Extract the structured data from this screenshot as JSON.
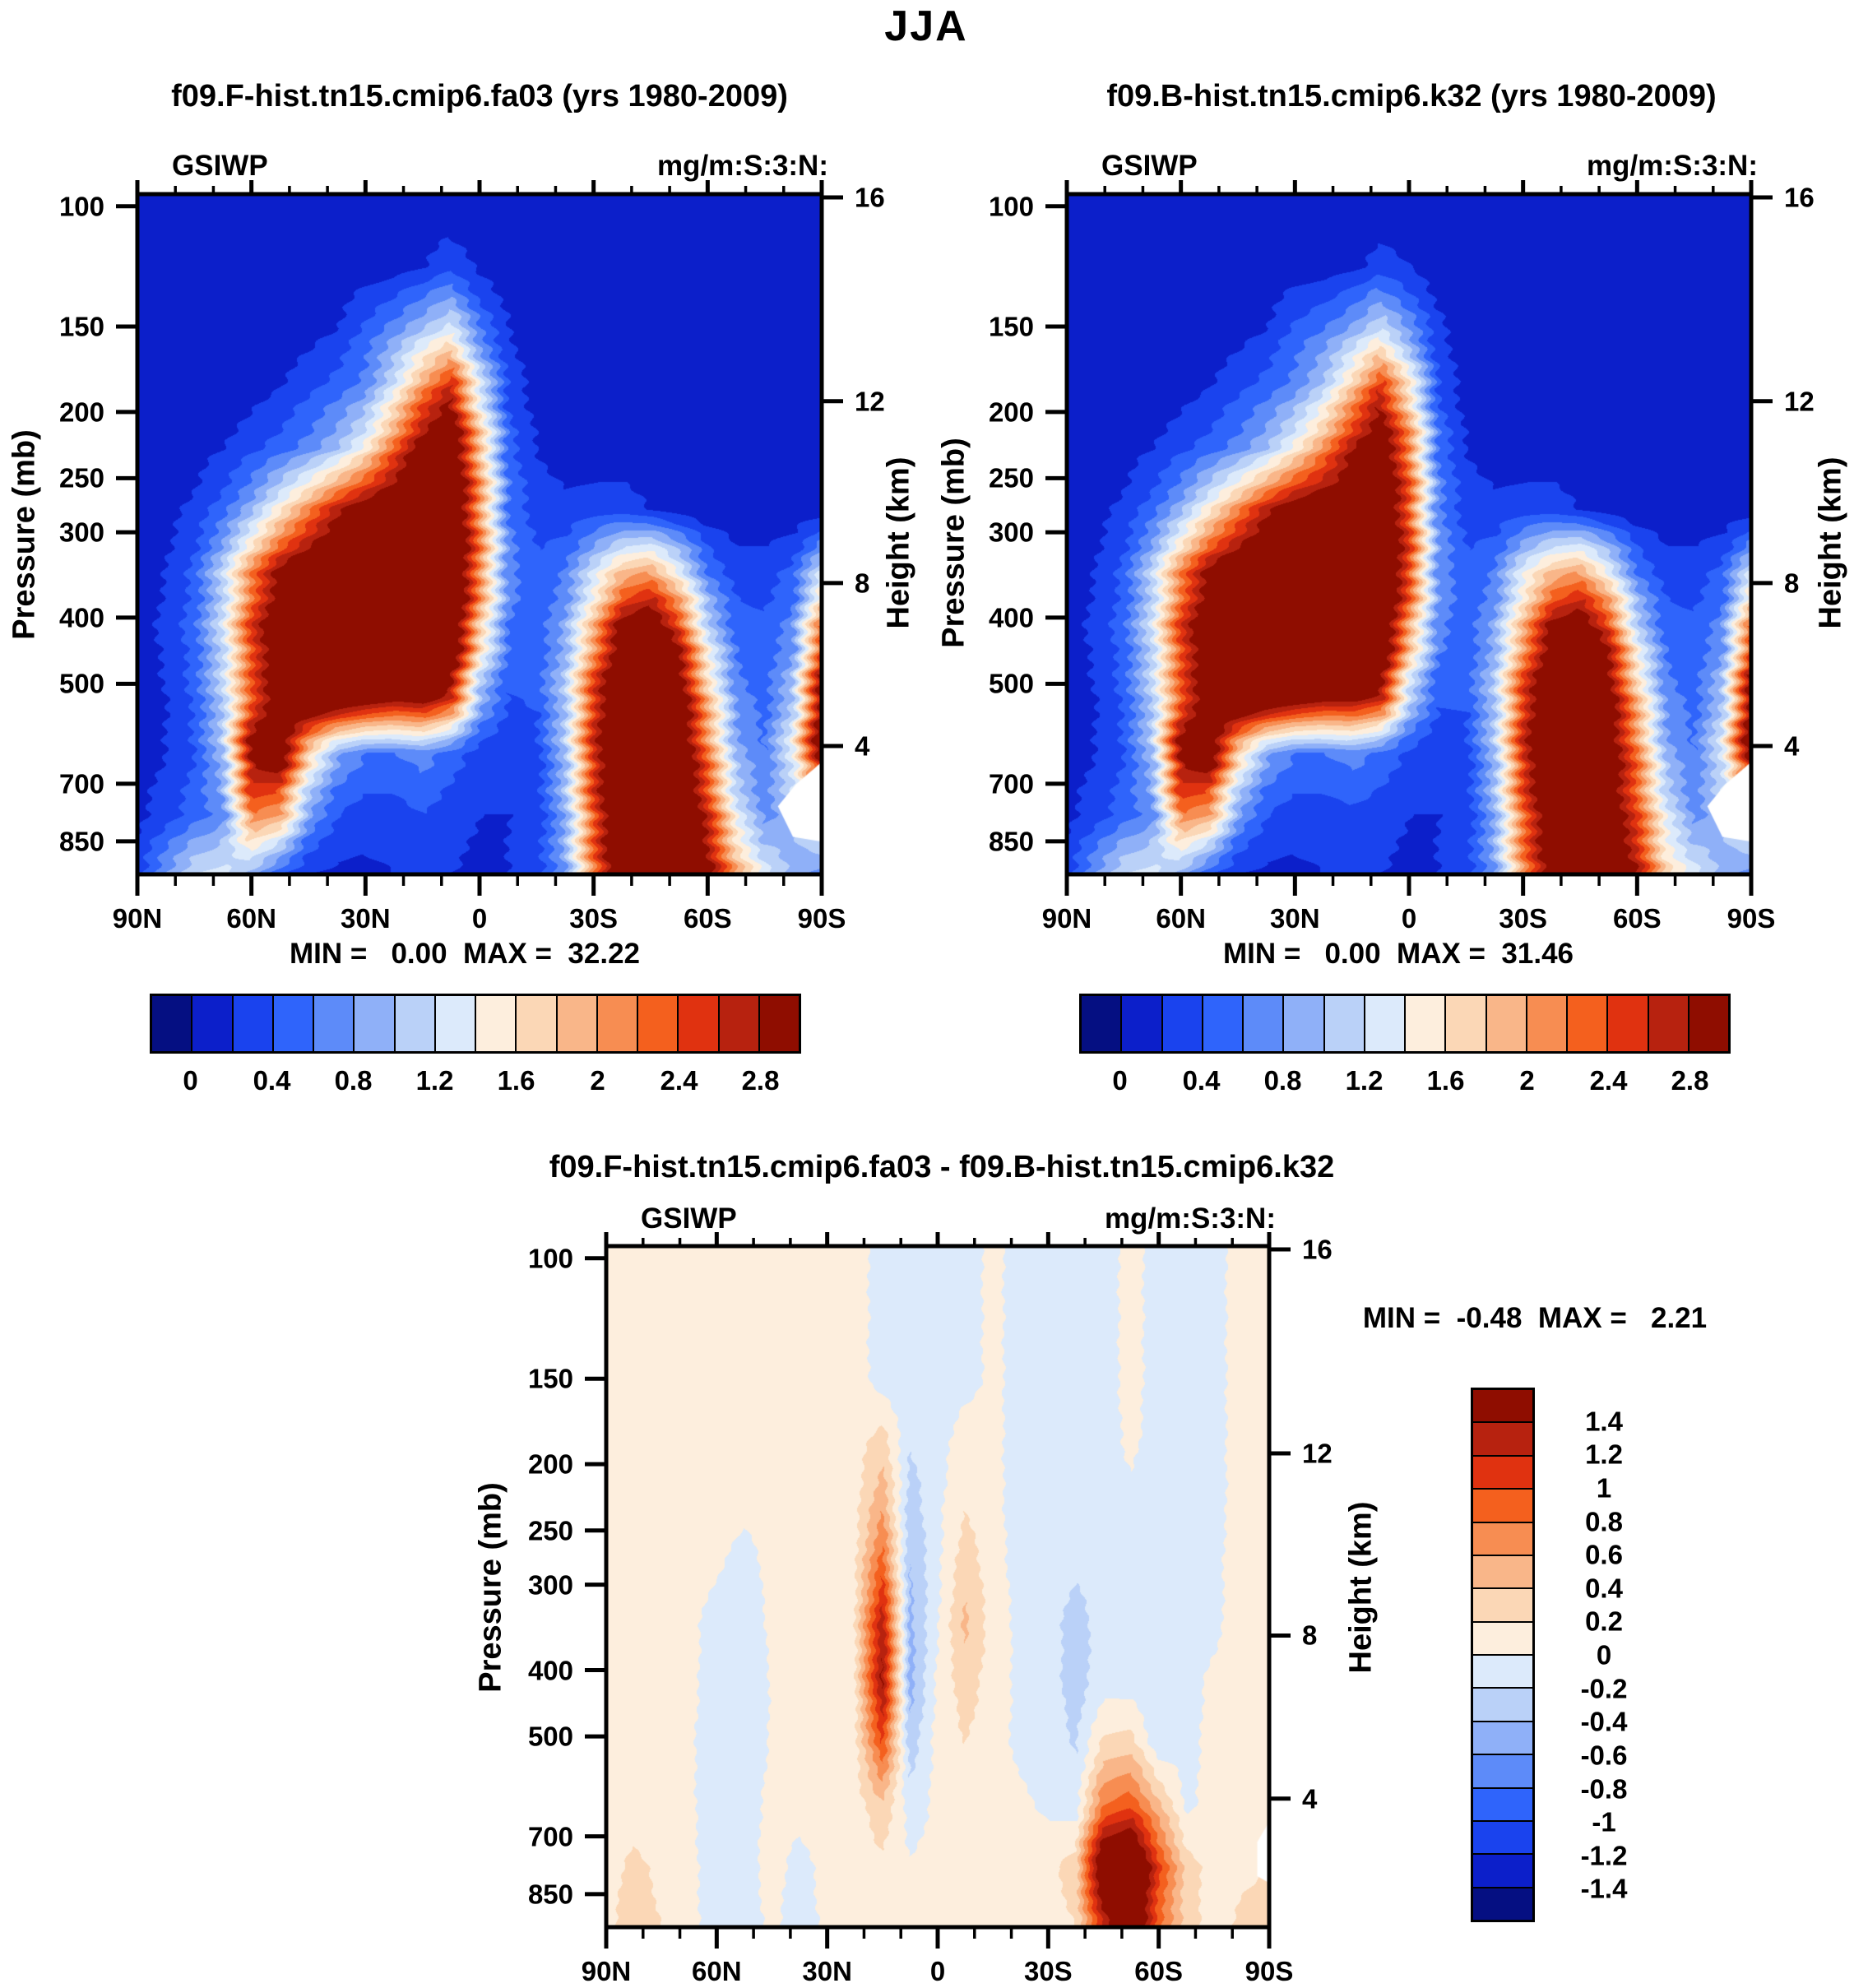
{
  "page_title": "JJA",
  "axes": {
    "y_left_title": "Pressure (mb)",
    "y_right_title": "Height (km)",
    "pressure_ticks": [
      100,
      150,
      200,
      250,
      300,
      400,
      500,
      700,
      850
    ],
    "height_ticks_km": [
      16,
      12,
      8,
      4
    ],
    "lat_tick_labels": [
      "90N",
      "60N",
      "30N",
      "0",
      "30S",
      "60S",
      "90S"
    ],
    "lat_major_step_deg": 30,
    "lat_minor_step_deg": 10
  },
  "colorbar": {
    "palette": [
      "#050f82",
      "#0c1fca",
      "#1a43ee",
      "#2f64fb",
      "#5d8bf9",
      "#8fb0f8",
      "#bad1f8",
      "#dceafb",
      "#fdeedd",
      "#fbd7b6",
      "#f9b689",
      "#f78d52",
      "#f4601e",
      "#e03210",
      "#b7220f",
      "#8f0d00"
    ],
    "main_boundary_labels": [
      "0",
      "0.4",
      "0.8",
      "1.2",
      "1.6",
      "2",
      "2.4",
      "2.8"
    ],
    "diff_boundary_labels": [
      "1.4",
      "1.2",
      "1",
      "0.8",
      "0.6",
      "0.4",
      "0.2",
      "0",
      "-0.2",
      "-0.4",
      "-0.6",
      "-0.8",
      "-1",
      "-1.2",
      "-1.4"
    ],
    "frame_color": "#000000"
  },
  "panels": [
    {
      "title": "f09.F-hist.tn15.cmip6.fa03 (yrs 1980-2009)",
      "field_label": "GSIWP",
      "units_label": "mg/m:S:3:N:",
      "stats": "MIN =   0.00  MAX =  32.22",
      "min_value": "0.00",
      "max_value": "32.22"
    },
    {
      "title": "f09.B-hist.tn15.cmip6.k32 (yrs 1980-2009)",
      "field_label": "GSIWP",
      "units_label": "mg/m:S:3:N:",
      "stats": "MIN =   0.00  MAX =  31.46",
      "min_value": "0.00",
      "max_value": "31.46"
    },
    {
      "title": "f09.F-hist.tn15.cmip6.fa03 - f09.B-hist.tn15.cmip6.k32",
      "field_label": "GSIWP",
      "units_label": "mg/m:S:3:N:",
      "stats": "MIN =  -0.48  MAX =   2.21",
      "min_value": "-0.48",
      "max_value": "2.21"
    }
  ],
  "chart_data": [
    {
      "type": "heatmap",
      "panel": "f09.F-hist.tn15.cmip6.fa03",
      "season": "JJA",
      "variable": "GSIWP",
      "units": "mg/m3",
      "contour_interval": 0.2,
      "contour_min": 0,
      "contour_max": 2.8,
      "x_lat_deg": [
        90,
        82.5,
        75,
        67.5,
        60,
        52.5,
        45,
        37.5,
        30,
        22.5,
        15,
        7.5,
        0,
        -7.5,
        -15,
        -22.5,
        -30,
        -37.5,
        -45,
        -52.5,
        -60,
        -67.5,
        -75,
        -82.5,
        -90
      ],
      "y_pressure_mb": [
        100,
        123,
        151,
        185,
        227,
        278,
        342,
        419,
        514,
        631,
        775,
        950
      ],
      "values": [
        [
          0.05,
          0.05,
          0.05,
          0.05,
          0.05,
          0.05,
          0.05,
          0.05,
          0.05,
          0.05,
          0.05,
          0.05,
          0.05,
          0.05,
          0.05,
          0.05,
          0.05,
          0.05,
          0.05,
          0.05,
          0.05,
          0.05,
          0.05,
          0.05,
          0.05
        ],
        [
          0.05,
          0.05,
          0.05,
          0.05,
          0.05,
          0.05,
          0.05,
          0.05,
          0.08,
          0.1,
          0.2,
          0.35,
          0.15,
          0.08,
          0.05,
          0.05,
          0.05,
          0.05,
          0.05,
          0.05,
          0.05,
          0.05,
          0.05,
          0.05,
          0.05
        ],
        [
          0.05,
          0.05,
          0.05,
          0.05,
          0.05,
          0.08,
          0.1,
          0.2,
          0.45,
          0.7,
          1.0,
          1.3,
          0.6,
          0.2,
          0.08,
          0.05,
          0.05,
          0.05,
          0.05,
          0.05,
          0.05,
          0.05,
          0.05,
          0.05,
          0.05
        ],
        [
          0.05,
          0.05,
          0.05,
          0.06,
          0.1,
          0.2,
          0.35,
          0.5,
          0.7,
          1.3,
          2.1,
          2.7,
          1.3,
          0.35,
          0.1,
          0.06,
          0.05,
          0.05,
          0.05,
          0.05,
          0.05,
          0.05,
          0.05,
          0.05,
          0.05
        ],
        [
          0.05,
          0.06,
          0.1,
          0.2,
          0.35,
          0.5,
          0.7,
          1.0,
          1.5,
          2.3,
          3.1,
          3.4,
          1.9,
          0.5,
          0.2,
          0.1,
          0.08,
          0.08,
          0.06,
          0.05,
          0.05,
          0.05,
          0.05,
          0.05,
          0.05
        ],
        [
          0.08,
          0.12,
          0.25,
          0.5,
          0.9,
          1.5,
          2.1,
          2.7,
          3.1,
          3.3,
          3.5,
          3.6,
          2.1,
          0.6,
          0.3,
          0.25,
          0.3,
          0.3,
          0.2,
          0.1,
          0.06,
          0.05,
          0.05,
          0.05,
          0.05
        ],
        [
          0.1,
          0.2,
          0.45,
          1.1,
          2.1,
          2.9,
          3.3,
          3.5,
          3.5,
          3.5,
          3.6,
          3.6,
          2.2,
          0.7,
          0.45,
          0.6,
          1.2,
          1.8,
          2.0,
          1.4,
          0.6,
          0.3,
          0.3,
          0.45,
          1.2
        ],
        [
          0.1,
          0.25,
          0.5,
          1.2,
          2.5,
          3.3,
          3.6,
          3.7,
          3.7,
          3.7,
          3.7,
          3.5,
          1.8,
          0.6,
          0.45,
          0.85,
          1.9,
          3.1,
          3.4,
          2.6,
          1.2,
          0.5,
          0.45,
          0.7,
          2.3
        ],
        [
          0.1,
          0.2,
          0.45,
          1.1,
          2.3,
          3.2,
          3.6,
          3.6,
          3.4,
          3.2,
          3.3,
          2.8,
          1.0,
          0.4,
          0.45,
          1.05,
          2.5,
          3.5,
          3.7,
          3.2,
          1.8,
          0.7,
          0.5,
          1.0,
          3.0
        ],
        [
          0.1,
          0.2,
          0.4,
          1.0,
          3.0,
          3.2,
          1.7,
          0.85,
          0.6,
          0.6,
          0.7,
          0.5,
          0.3,
          0.25,
          0.3,
          1.0,
          2.6,
          3.6,
          3.8,
          3.4,
          2.2,
          0.9,
          0.6,
          1.4,
          3.2
        ],
        [
          0.15,
          0.3,
          0.5,
          0.7,
          2.2,
          2.0,
          0.8,
          0.4,
          0.3,
          0.3,
          0.4,
          0.3,
          0.2,
          0.2,
          0.25,
          0.9,
          2.4,
          3.6,
          3.8,
          3.6,
          2.6,
          1.3,
          0.7,
          1.0,
          1.6
        ],
        [
          0.3,
          0.8,
          1.2,
          1.3,
          0.9,
          0.4,
          0.2,
          0.15,
          0.15,
          0.2,
          0.3,
          0.2,
          0.15,
          0.2,
          0.3,
          0.8,
          2.2,
          3.4,
          3.8,
          3.8,
          3.0,
          2.0,
          1.3,
          0.9,
          0.7
        ]
      ]
    },
    {
      "type": "heatmap",
      "panel": "f09.B-hist.tn15.cmip6.k32",
      "season": "JJA",
      "variable": "GSIWP",
      "units": "mg/m3",
      "contour_interval": 0.2,
      "contour_min": 0,
      "contour_max": 2.8,
      "x_lat_deg": [
        90,
        82.5,
        75,
        67.5,
        60,
        52.5,
        45,
        37.5,
        30,
        22.5,
        15,
        7.5,
        0,
        -7.5,
        -15,
        -22.5,
        -30,
        -37.5,
        -45,
        -52.5,
        -60,
        -67.5,
        -75,
        -82.5,
        -90
      ],
      "y_pressure_mb": [
        100,
        123,
        151,
        185,
        227,
        278,
        342,
        419,
        514,
        631,
        775,
        950
      ],
      "values": [
        [
          0.05,
          0.05,
          0.05,
          0.05,
          0.05,
          0.05,
          0.05,
          0.05,
          0.05,
          0.05,
          0.05,
          0.05,
          0.05,
          0.05,
          0.05,
          0.05,
          0.05,
          0.05,
          0.05,
          0.05,
          0.05,
          0.05,
          0.05,
          0.05,
          0.05
        ],
        [
          0.05,
          0.05,
          0.05,
          0.05,
          0.05,
          0.05,
          0.05,
          0.05,
          0.08,
          0.1,
          0.15,
          0.3,
          0.2,
          0.08,
          0.05,
          0.05,
          0.05,
          0.05,
          0.05,
          0.05,
          0.05,
          0.05,
          0.05,
          0.05,
          0.05
        ],
        [
          0.05,
          0.05,
          0.05,
          0.05,
          0.05,
          0.08,
          0.1,
          0.2,
          0.45,
          0.6,
          0.85,
          1.2,
          0.75,
          0.25,
          0.08,
          0.05,
          0.05,
          0.05,
          0.05,
          0.05,
          0.05,
          0.05,
          0.05,
          0.05,
          0.05
        ],
        [
          0.05,
          0.05,
          0.05,
          0.06,
          0.1,
          0.2,
          0.35,
          0.5,
          0.7,
          1.1,
          1.8,
          2.6,
          1.6,
          0.4,
          0.1,
          0.06,
          0.05,
          0.05,
          0.05,
          0.05,
          0.05,
          0.05,
          0.05,
          0.05,
          0.05
        ],
        [
          0.05,
          0.06,
          0.1,
          0.2,
          0.35,
          0.5,
          0.7,
          1.0,
          1.5,
          2.1,
          2.8,
          3.3,
          2.2,
          0.6,
          0.2,
          0.1,
          0.08,
          0.08,
          0.06,
          0.05,
          0.05,
          0.05,
          0.05,
          0.05,
          0.05
        ],
        [
          0.08,
          0.12,
          0.25,
          0.5,
          0.9,
          1.5,
          2.1,
          2.7,
          3.1,
          3.2,
          3.2,
          3.5,
          2.4,
          0.7,
          0.3,
          0.25,
          0.3,
          0.3,
          0.2,
          0.1,
          0.06,
          0.05,
          0.05,
          0.05,
          0.05
        ],
        [
          0.1,
          0.2,
          0.45,
          1.1,
          2.1,
          2.9,
          3.3,
          3.5,
          3.5,
          3.4,
          3.4,
          3.6,
          2.5,
          0.8,
          0.45,
          0.6,
          1.3,
          1.8,
          2.0,
          1.4,
          0.6,
          0.3,
          0.3,
          0.45,
          1.2
        ],
        [
          0.1,
          0.25,
          0.5,
          1.2,
          2.5,
          3.3,
          3.6,
          3.7,
          3.7,
          3.6,
          3.5,
          3.5,
          2.0,
          0.7,
          0.45,
          0.85,
          1.9,
          3.0,
          3.3,
          2.6,
          1.2,
          0.5,
          0.45,
          0.7,
          2.3
        ],
        [
          0.1,
          0.2,
          0.45,
          1.1,
          2.3,
          3.2,
          3.6,
          3.6,
          3.4,
          3.2,
          3.2,
          2.9,
          1.2,
          0.45,
          0.45,
          1.05,
          2.5,
          3.4,
          3.6,
          3.1,
          1.8,
          0.7,
          0.5,
          1.0,
          3.0
        ],
        [
          0.1,
          0.2,
          0.4,
          1.0,
          3.0,
          3.2,
          1.7,
          0.85,
          0.6,
          0.6,
          0.7,
          0.55,
          0.35,
          0.25,
          0.3,
          1.0,
          2.6,
          3.6,
          3.7,
          3.2,
          2.2,
          0.9,
          0.6,
          1.3,
          3.2
        ],
        [
          0.15,
          0.3,
          0.5,
          0.7,
          2.2,
          2.0,
          0.8,
          0.4,
          0.3,
          0.3,
          0.35,
          0.3,
          0.2,
          0.2,
          0.25,
          0.9,
          2.3,
          3.3,
          3.5,
          3.2,
          2.4,
          1.3,
          0.7,
          1.0,
          1.6
        ],
        [
          0.3,
          0.8,
          1.2,
          1.3,
          0.9,
          0.4,
          0.2,
          0.15,
          0.15,
          0.2,
          0.25,
          0.2,
          0.15,
          0.2,
          0.3,
          0.8,
          2.1,
          3.1,
          3.5,
          3.4,
          2.8,
          1.7,
          1.3,
          0.9,
          0.7
        ]
      ]
    },
    {
      "type": "heatmap",
      "panel": "f09.F-hist.tn15.cmip6.fa03 - f09.B-hist.tn15.cmip6.k32",
      "season": "JJA",
      "variable": "GSIWP difference",
      "units": "mg/m3",
      "contour_interval": 0.2,
      "contour_min": -1.4,
      "contour_max": 1.4,
      "x_lat_deg": [
        90,
        82.5,
        75,
        67.5,
        60,
        52.5,
        45,
        37.5,
        30,
        22.5,
        15,
        7.5,
        0,
        -7.5,
        -15,
        -22.5,
        -30,
        -37.5,
        -45,
        -52.5,
        -60,
        -67.5,
        -75,
        -82.5,
        -90
      ],
      "y_pressure_mb": [
        100,
        123,
        151,
        185,
        227,
        278,
        342,
        419,
        514,
        631,
        775,
        950
      ],
      "values": [
        [
          0.1,
          0.1,
          0.1,
          0.1,
          0.1,
          0.1,
          0.1,
          0.1,
          0.1,
          0.08,
          -0.08,
          -0.1,
          -0.1,
          -0.08,
          0.05,
          -0.08,
          -0.1,
          -0.1,
          -0.1,
          0.08,
          -0.1,
          -0.1,
          -0.08,
          0.1,
          0.12
        ],
        [
          0.1,
          0.1,
          0.1,
          0.1,
          0.1,
          0.1,
          0.1,
          0.1,
          0.1,
          0.08,
          -0.08,
          -0.1,
          -0.1,
          -0.08,
          0.05,
          -0.08,
          -0.1,
          -0.1,
          -0.1,
          0.08,
          -0.1,
          -0.1,
          -0.08,
          0.1,
          0.12
        ],
        [
          0.1,
          0.1,
          0.1,
          0.1,
          0.1,
          0.1,
          0.1,
          0.1,
          0.1,
          0.08,
          -0.08,
          -0.12,
          -0.1,
          -0.08,
          0.05,
          -0.08,
          -0.1,
          -0.1,
          -0.1,
          0.08,
          -0.1,
          -0.1,
          -0.08,
          0.1,
          0.12
        ],
        [
          0.1,
          0.1,
          0.1,
          0.1,
          0.1,
          0.1,
          0.1,
          0.1,
          0.1,
          0.1,
          0.3,
          -0.18,
          -0.1,
          0.12,
          0.05,
          -0.08,
          -0.1,
          -0.1,
          -0.1,
          0.05,
          -0.1,
          -0.1,
          -0.08,
          0.1,
          0.12
        ],
        [
          0.1,
          0.1,
          0.1,
          0.1,
          0.08,
          0.08,
          0.1,
          0.1,
          0.1,
          0.12,
          0.55,
          -0.3,
          -0.05,
          0.18,
          0.05,
          -0.08,
          -0.1,
          -0.12,
          -0.1,
          -0.05,
          -0.12,
          -0.1,
          -0.08,
          0.1,
          0.12
        ],
        [
          0.1,
          0.1,
          0.1,
          0.1,
          0.05,
          -0.1,
          0.08,
          0.1,
          0.1,
          0.15,
          0.9,
          -0.4,
          -0.05,
          0.32,
          0.08,
          -0.08,
          -0.1,
          -0.15,
          -0.1,
          -0.05,
          -0.12,
          -0.1,
          -0.05,
          0.1,
          0.12
        ],
        [
          0.1,
          0.1,
          0.1,
          0.08,
          -0.12,
          -0.15,
          0.05,
          0.1,
          0.1,
          0.18,
          1.35,
          -0.45,
          -0.02,
          0.45,
          0.1,
          -0.05,
          -0.1,
          -0.3,
          -0.1,
          -0.05,
          -0.15,
          -0.1,
          -0.05,
          0.1,
          0.12
        ],
        [
          0.1,
          0.1,
          0.1,
          0.08,
          -0.15,
          -0.18,
          0.02,
          0.08,
          0.1,
          0.15,
          1.45,
          -0.48,
          0.05,
          0.3,
          0.1,
          -0.05,
          -0.1,
          -0.3,
          -0.08,
          -0.1,
          -0.2,
          -0.08,
          0.05,
          0.1,
          0.12
        ],
        [
          0.1,
          0.1,
          0.1,
          0.05,
          -0.18,
          -0.12,
          0.02,
          0.08,
          0.08,
          0.12,
          1.0,
          -0.32,
          0.08,
          0.2,
          0.08,
          -0.05,
          -0.08,
          -0.22,
          0.25,
          0.3,
          -0.15,
          -0.05,
          0.05,
          0.12,
          0.15
        ],
        [
          0.1,
          0.1,
          0.08,
          0.05,
          -0.15,
          -0.08,
          0.05,
          0.05,
          0.05,
          0.1,
          0.35,
          -0.1,
          0.05,
          0.1,
          0.05,
          0.05,
          -0.05,
          -0.1,
          0.8,
          0.95,
          0.45,
          -0.05,
          0.08,
          0.12,
          0.15
        ],
        [
          0.12,
          0.25,
          0.15,
          0.05,
          -0.1,
          -0.05,
          0.05,
          -0.05,
          0.05,
          0.08,
          0.15,
          0.02,
          0.05,
          0.08,
          0.05,
          0.1,
          0.15,
          0.3,
          1.9,
          2.2,
          1.05,
          0.3,
          0.1,
          0.15,
          0.2
        ],
        [
          0.15,
          0.3,
          0.2,
          0.05,
          -0.08,
          -0.05,
          0.02,
          -0.05,
          0.02,
          0.05,
          0.1,
          0.02,
          0.05,
          0.05,
          0.05,
          0.08,
          0.1,
          0.2,
          1.2,
          2.0,
          0.85,
          0.3,
          0.1,
          0.25,
          0.3
        ]
      ]
    }
  ]
}
